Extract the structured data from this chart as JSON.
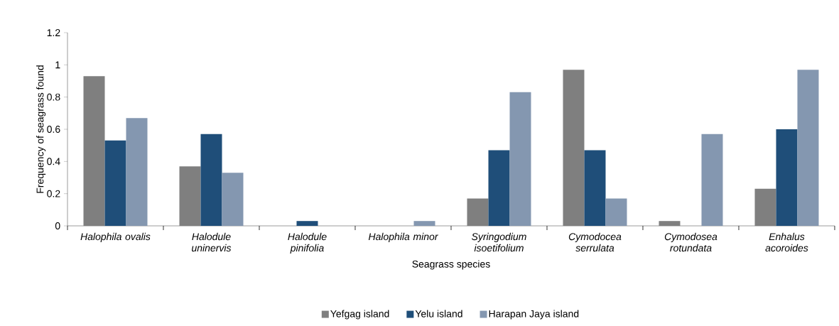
{
  "chart_data": {
    "type": "bar",
    "xlabel": "Seagrass species",
    "ylabel": "Frequency of seagrass found",
    "categories": [
      "Halophila ovalis",
      "Halodule uninervis",
      "Halodule pinifolia",
      "Halophila minor",
      "Syringodium isoetifolium",
      "Cymodocea serrulata",
      "Cymodosea rotundata",
      "Enhalus acoroides"
    ],
    "series": [
      {
        "name": "Yefgag island",
        "color": "#7f7f7f",
        "values": [
          0.93,
          0.37,
          0,
          0,
          0.17,
          0.97,
          0.03,
          0.23
        ]
      },
      {
        "name": "Yelu island",
        "color": "#1f4e79",
        "values": [
          0.53,
          0.57,
          0.03,
          0,
          0.47,
          0.47,
          0,
          0.6
        ]
      },
      {
        "name": "Harapan Jaya island",
        "color": "#8497b0",
        "values": [
          0.67,
          0.33,
          0,
          0.03,
          0.83,
          0.17,
          0.57,
          0.97
        ]
      }
    ],
    "ylim": [
      0,
      1.2
    ],
    "yticks": [
      0,
      0.2,
      0.4,
      0.6,
      0.8,
      1,
      1.2
    ],
    "grid": false,
    "legend": "bottom"
  }
}
